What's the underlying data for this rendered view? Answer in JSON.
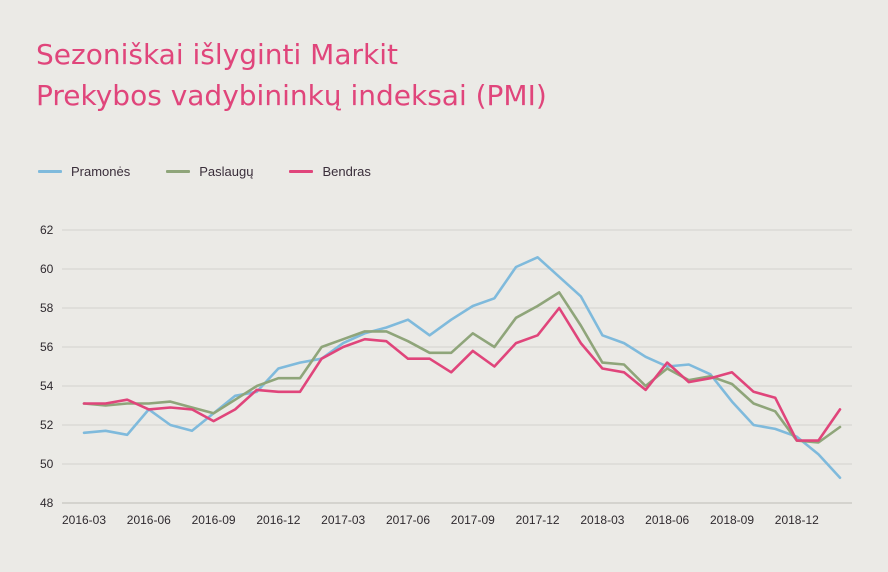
{
  "title_lines": [
    "Sezoniškai išlyginti Markit",
    "Prekybos vadybininkų indeksai (PMI)"
  ],
  "chart_data": {
    "type": "line",
    "title": "Sezoniškai išlyginti Markit Prekybos vadybininkų indeksai (PMI)",
    "xlabel": "",
    "ylabel": "",
    "ylim": [
      48,
      62
    ],
    "yticks": [
      48,
      50,
      52,
      54,
      56,
      58,
      60,
      62
    ],
    "grid": true,
    "legend_position": "top-left",
    "x": [
      "2016-03",
      "2016-04",
      "2016-05",
      "2016-06",
      "2016-07",
      "2016-08",
      "2016-09",
      "2016-10",
      "2016-11",
      "2016-12",
      "2017-01",
      "2017-02",
      "2017-03",
      "2017-04",
      "2017-05",
      "2017-06",
      "2017-07",
      "2017-08",
      "2017-09",
      "2017-10",
      "2017-11",
      "2017-12",
      "2018-01",
      "2018-02",
      "2018-03",
      "2018-04",
      "2018-05",
      "2018-06",
      "2018-07",
      "2018-08",
      "2018-09",
      "2018-10",
      "2018-11",
      "2018-12",
      "2019-01",
      "2019-02"
    ],
    "xtick_labels": [
      "2016-03",
      "2016-06",
      "2016-09",
      "2016-12",
      "2017-03",
      "2017-06",
      "2017-09",
      "2017-12",
      "2018-03",
      "2018-06",
      "2018-09",
      "2018-12"
    ],
    "series": [
      {
        "name": "Pramonės",
        "color": "#7fbadc",
        "values": [
          51.6,
          51.7,
          51.5,
          52.8,
          52.0,
          51.7,
          52.6,
          53.5,
          53.7,
          54.9,
          55.2,
          55.4,
          56.2,
          56.7,
          57.0,
          57.4,
          56.6,
          57.4,
          58.1,
          58.5,
          60.1,
          60.6,
          59.6,
          58.6,
          56.6,
          56.2,
          55.5,
          55.0,
          55.1,
          54.6,
          53.2,
          52.0,
          51.8,
          51.4,
          50.5,
          49.3
        ]
      },
      {
        "name": "Paslaugų",
        "color": "#8fa57a",
        "values": [
          53.1,
          53.0,
          53.1,
          53.1,
          53.2,
          52.9,
          52.6,
          53.3,
          54.0,
          54.4,
          54.4,
          56.0,
          56.4,
          56.8,
          56.8,
          56.3,
          55.7,
          55.7,
          56.7,
          56.0,
          57.5,
          58.1,
          58.8,
          57.1,
          55.2,
          55.1,
          54.0,
          54.9,
          54.3,
          54.5,
          54.1,
          53.1,
          52.7,
          51.2,
          51.1,
          51.9
        ]
      },
      {
        "name": "Bendras",
        "color": "#e0457b",
        "values": [
          53.1,
          53.1,
          53.3,
          52.8,
          52.9,
          52.8,
          52.2,
          52.8,
          53.8,
          53.7,
          53.7,
          55.4,
          56.0,
          56.4,
          56.3,
          55.4,
          55.4,
          54.7,
          55.8,
          55.0,
          56.2,
          56.6,
          58.0,
          56.2,
          54.9,
          54.7,
          53.8,
          55.2,
          54.2,
          54.4,
          54.7,
          53.7,
          53.4,
          51.2,
          51.2,
          52.8
        ]
      }
    ]
  }
}
